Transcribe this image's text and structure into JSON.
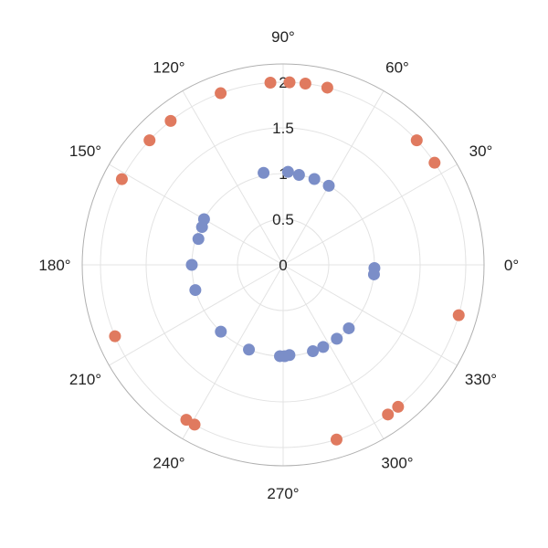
{
  "chart_data": {
    "type": "scatter",
    "coordinate_system": "polar",
    "title": "",
    "angular_axis": {
      "unit": "degrees",
      "ticks": [
        0,
        30,
        60,
        90,
        120,
        150,
        180,
        210,
        240,
        270,
        300,
        330
      ],
      "tick_labels": [
        "0°",
        "30°",
        "60°",
        "90°",
        "120°",
        "150°",
        "180°",
        "210°",
        "240°",
        "270°",
        "300°",
        "330°"
      ]
    },
    "radial_axis": {
      "range": [
        0,
        2.2
      ],
      "ticks": [
        0,
        0.5,
        1,
        1.5,
        2
      ],
      "tick_labels": [
        "0",
        "0.5",
        "1",
        "1.5",
        "2"
      ]
    },
    "grid": true,
    "legend": "none",
    "series": [
      {
        "color": "#7b8ec8",
        "points": [
          {
            "theta": 87,
            "r": 1.02
          },
          {
            "theta": 80,
            "r": 1.0
          },
          {
            "theta": 70,
            "r": 1.0
          },
          {
            "theta": 60,
            "r": 1.0
          },
          {
            "theta": 102,
            "r": 1.03
          },
          {
            "theta": 150,
            "r": 1.0
          },
          {
            "theta": 155,
            "r": 0.98
          },
          {
            "theta": 163,
            "r": 0.97
          },
          {
            "theta": 180,
            "r": 1.0
          },
          {
            "theta": 196,
            "r": 1.0
          },
          {
            "theta": 227,
            "r": 1.0
          },
          {
            "theta": 248,
            "r": 1.0
          },
          {
            "theta": 268,
            "r": 1.0
          },
          {
            "theta": 271,
            "r": 1.0
          },
          {
            "theta": 274,
            "r": 0.99
          },
          {
            "theta": 289,
            "r": 1.0
          },
          {
            "theta": 296,
            "r": 1.0
          },
          {
            "theta": 306,
            "r": 1.0
          },
          {
            "theta": 316,
            "r": 1.0
          },
          {
            "theta": 358,
            "r": 1.0
          },
          {
            "theta": 354,
            "r": 1.0
          }
        ]
      },
      {
        "color": "#e07a5f",
        "points": [
          {
            "theta": 88,
            "r": 2.0
          },
          {
            "theta": 94,
            "r": 2.0
          },
          {
            "theta": 110,
            "r": 2.0
          },
          {
            "theta": 83,
            "r": 2.0
          },
          {
            "theta": 76,
            "r": 2.0
          },
          {
            "theta": 128,
            "r": 2.0
          },
          {
            "theta": 137,
            "r": 2.0
          },
          {
            "theta": 152,
            "r": 2.0
          },
          {
            "theta": 43,
            "r": 2.0
          },
          {
            "theta": 34,
            "r": 2.0
          },
          {
            "theta": 344,
            "r": 2.0
          },
          {
            "theta": 203,
            "r": 2.0
          },
          {
            "theta": 238,
            "r": 2.0
          },
          {
            "theta": 241,
            "r": 2.0
          },
          {
            "theta": 287,
            "r": 2.0
          },
          {
            "theta": 305,
            "r": 2.0
          },
          {
            "theta": 309,
            "r": 2.0
          }
        ]
      }
    ]
  }
}
